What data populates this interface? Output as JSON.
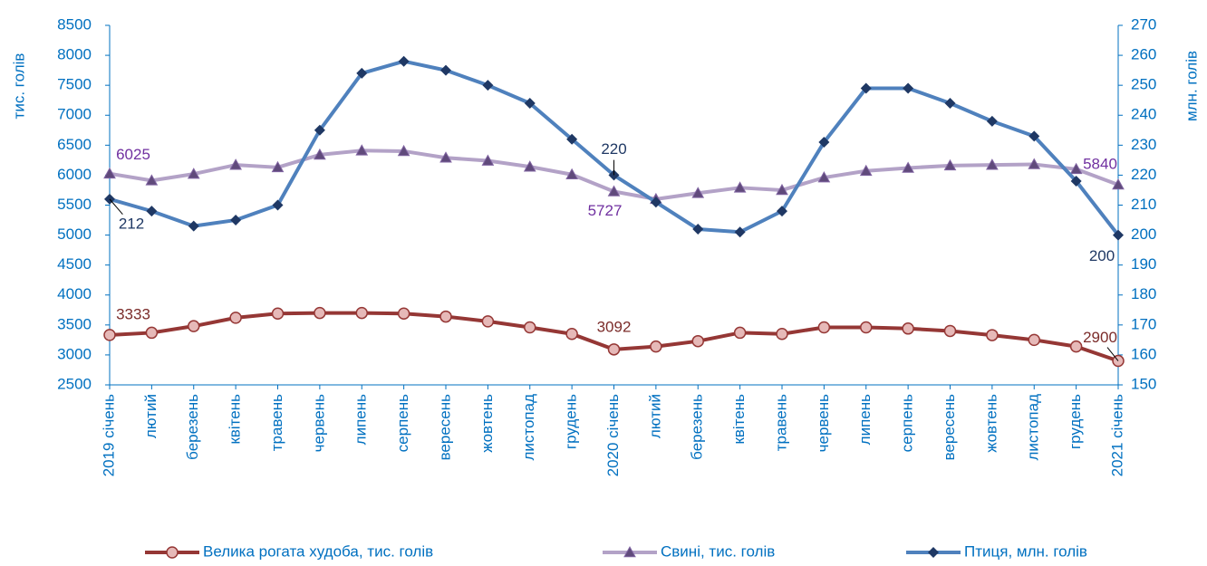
{
  "chart_data": {
    "type": "line",
    "categories": [
      "2019 січень",
      "лютий",
      "березень",
      "квітень",
      "травень",
      "червень",
      "липень",
      "серпень",
      "вересень",
      "жовтень",
      "листопад",
      "грудень",
      "2020 січень",
      "лютий",
      "березень",
      "квітень",
      "травень",
      "червень",
      "липень",
      "серпень",
      "вересень",
      "жовтень",
      "листопад",
      "грудень",
      "2021 січень"
    ],
    "ylabel": "тис. голів",
    "y2label": "млн. голів",
    "ylim": [
      2500,
      8500
    ],
    "yticks": [
      2500,
      3000,
      3500,
      4000,
      4500,
      5000,
      5500,
      6000,
      6500,
      7000,
      7500,
      8000,
      8500
    ],
    "y2lim": [
      150,
      270
    ],
    "y2ticks": [
      150,
      160,
      170,
      180,
      190,
      200,
      210,
      220,
      230,
      240,
      250,
      260,
      270
    ],
    "series": [
      {
        "name": "Велика рогата худоба, тис. голів",
        "color": "#953735",
        "marker": "circle",
        "marker_color": "#e6b9b8",
        "label_color": "#7b2c2a",
        "values": [
          3333,
          3370,
          3480,
          3620,
          3690,
          3700,
          3700,
          3690,
          3640,
          3560,
          3460,
          3350,
          3092,
          3140,
          3230,
          3370,
          3350,
          3460,
          3460,
          3440,
          3400,
          3330,
          3250,
          3140,
          2900
        ],
        "value_labels": [
          "3333",
          null,
          null,
          null,
          null,
          null,
          null,
          null,
          null,
          null,
          null,
          null,
          "3092",
          null,
          null,
          null,
          null,
          null,
          null,
          null,
          null,
          null,
          null,
          null,
          "2900"
        ]
      },
      {
        "name": "Свині, тис. голів",
        "color": "#b3a2c7",
        "marker": "triangle",
        "marker_color": "#604a7b",
        "label_color": "#7030a0",
        "values": [
          6025,
          5910,
          6020,
          6170,
          6130,
          6340,
          6410,
          6400,
          6290,
          6240,
          6140,
          6010,
          5727,
          5600,
          5700,
          5790,
          5750,
          5960,
          6070,
          6120,
          6160,
          6170,
          6180,
          6100,
          5840
        ],
        "value_labels": [
          "6025",
          null,
          null,
          null,
          null,
          null,
          null,
          null,
          null,
          null,
          null,
          null,
          "5727",
          null,
          null,
          null,
          null,
          null,
          null,
          null,
          null,
          null,
          null,
          null,
          "5840"
        ]
      },
      {
        "name": "Птиця, млн. голів",
        "color": "#4f81bd",
        "marker": "diamond",
        "marker_color": "#1f3864",
        "label_color": "#1f3864",
        "axis": "y2",
        "values": [
          212,
          208,
          203,
          205,
          210,
          235,
          254,
          258,
          255,
          250,
          244,
          232,
          220,
          211,
          202,
          201,
          208,
          231,
          249,
          249,
          244,
          238,
          233,
          218,
          200
        ],
        "value_labels": [
          "212",
          null,
          null,
          null,
          null,
          null,
          null,
          null,
          null,
          null,
          null,
          null,
          "220",
          null,
          null,
          null,
          null,
          null,
          null,
          null,
          null,
          null,
          null,
          null,
          "200"
        ]
      }
    ]
  }
}
